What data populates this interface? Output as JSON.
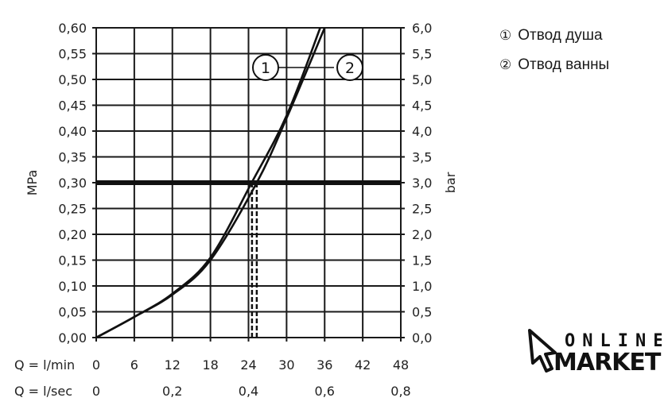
{
  "chart_data": {
    "type": "line",
    "xlabel_rows": [
      "Q = l/min",
      "Q = l/sec"
    ],
    "x_ticks_lmin": [
      "0",
      "6",
      "12",
      "18",
      "24",
      "30",
      "36",
      "42",
      "48"
    ],
    "x_ticks_lsec": [
      "0",
      "0,2",
      "0,4",
      "0,6",
      "0,8"
    ],
    "xlim": [
      0,
      48
    ],
    "ylabel_left": "MPa",
    "ylabel_right": "bar",
    "ylim": [
      0,
      0.6
    ],
    "y_ticks_left": [
      "0,00",
      "0,05",
      "0,10",
      "0,15",
      "0,20",
      "0,25",
      "0,30",
      "0,35",
      "0,40",
      "0,45",
      "0,50",
      "0,55",
      "0,60"
    ],
    "y_ticks_right": [
      "0,0",
      "0,5",
      "1,0",
      "1,5",
      "2,0",
      "2,5",
      "3,0",
      "3,5",
      "4,0",
      "4,5",
      "5,0",
      "5,5",
      "6,0"
    ],
    "grid": true,
    "reference_line_y": 0.3,
    "series": [
      {
        "name": "1",
        "x": [
          0,
          6,
          12,
          18,
          24.5,
          30,
          35.3
        ],
        "y": [
          0,
          0.04,
          0.085,
          0.155,
          0.3,
          0.43,
          0.6
        ],
        "drop_x": 24.55
      },
      {
        "name": "2",
        "x": [
          0,
          6,
          12,
          18,
          25.3,
          30,
          36
        ],
        "y": [
          0,
          0.04,
          0.083,
          0.15,
          0.3,
          0.425,
          0.6
        ],
        "drop_x": 25.3
      }
    ],
    "markers": [
      "1",
      "2"
    ]
  },
  "legend": [
    {
      "symbol": "①",
      "label": "Отвод душа"
    },
    {
      "symbol": "②",
      "label": "Отвод ванны"
    }
  ],
  "logo": {
    "line1": "ONLINE",
    "line2": "MARKET"
  }
}
